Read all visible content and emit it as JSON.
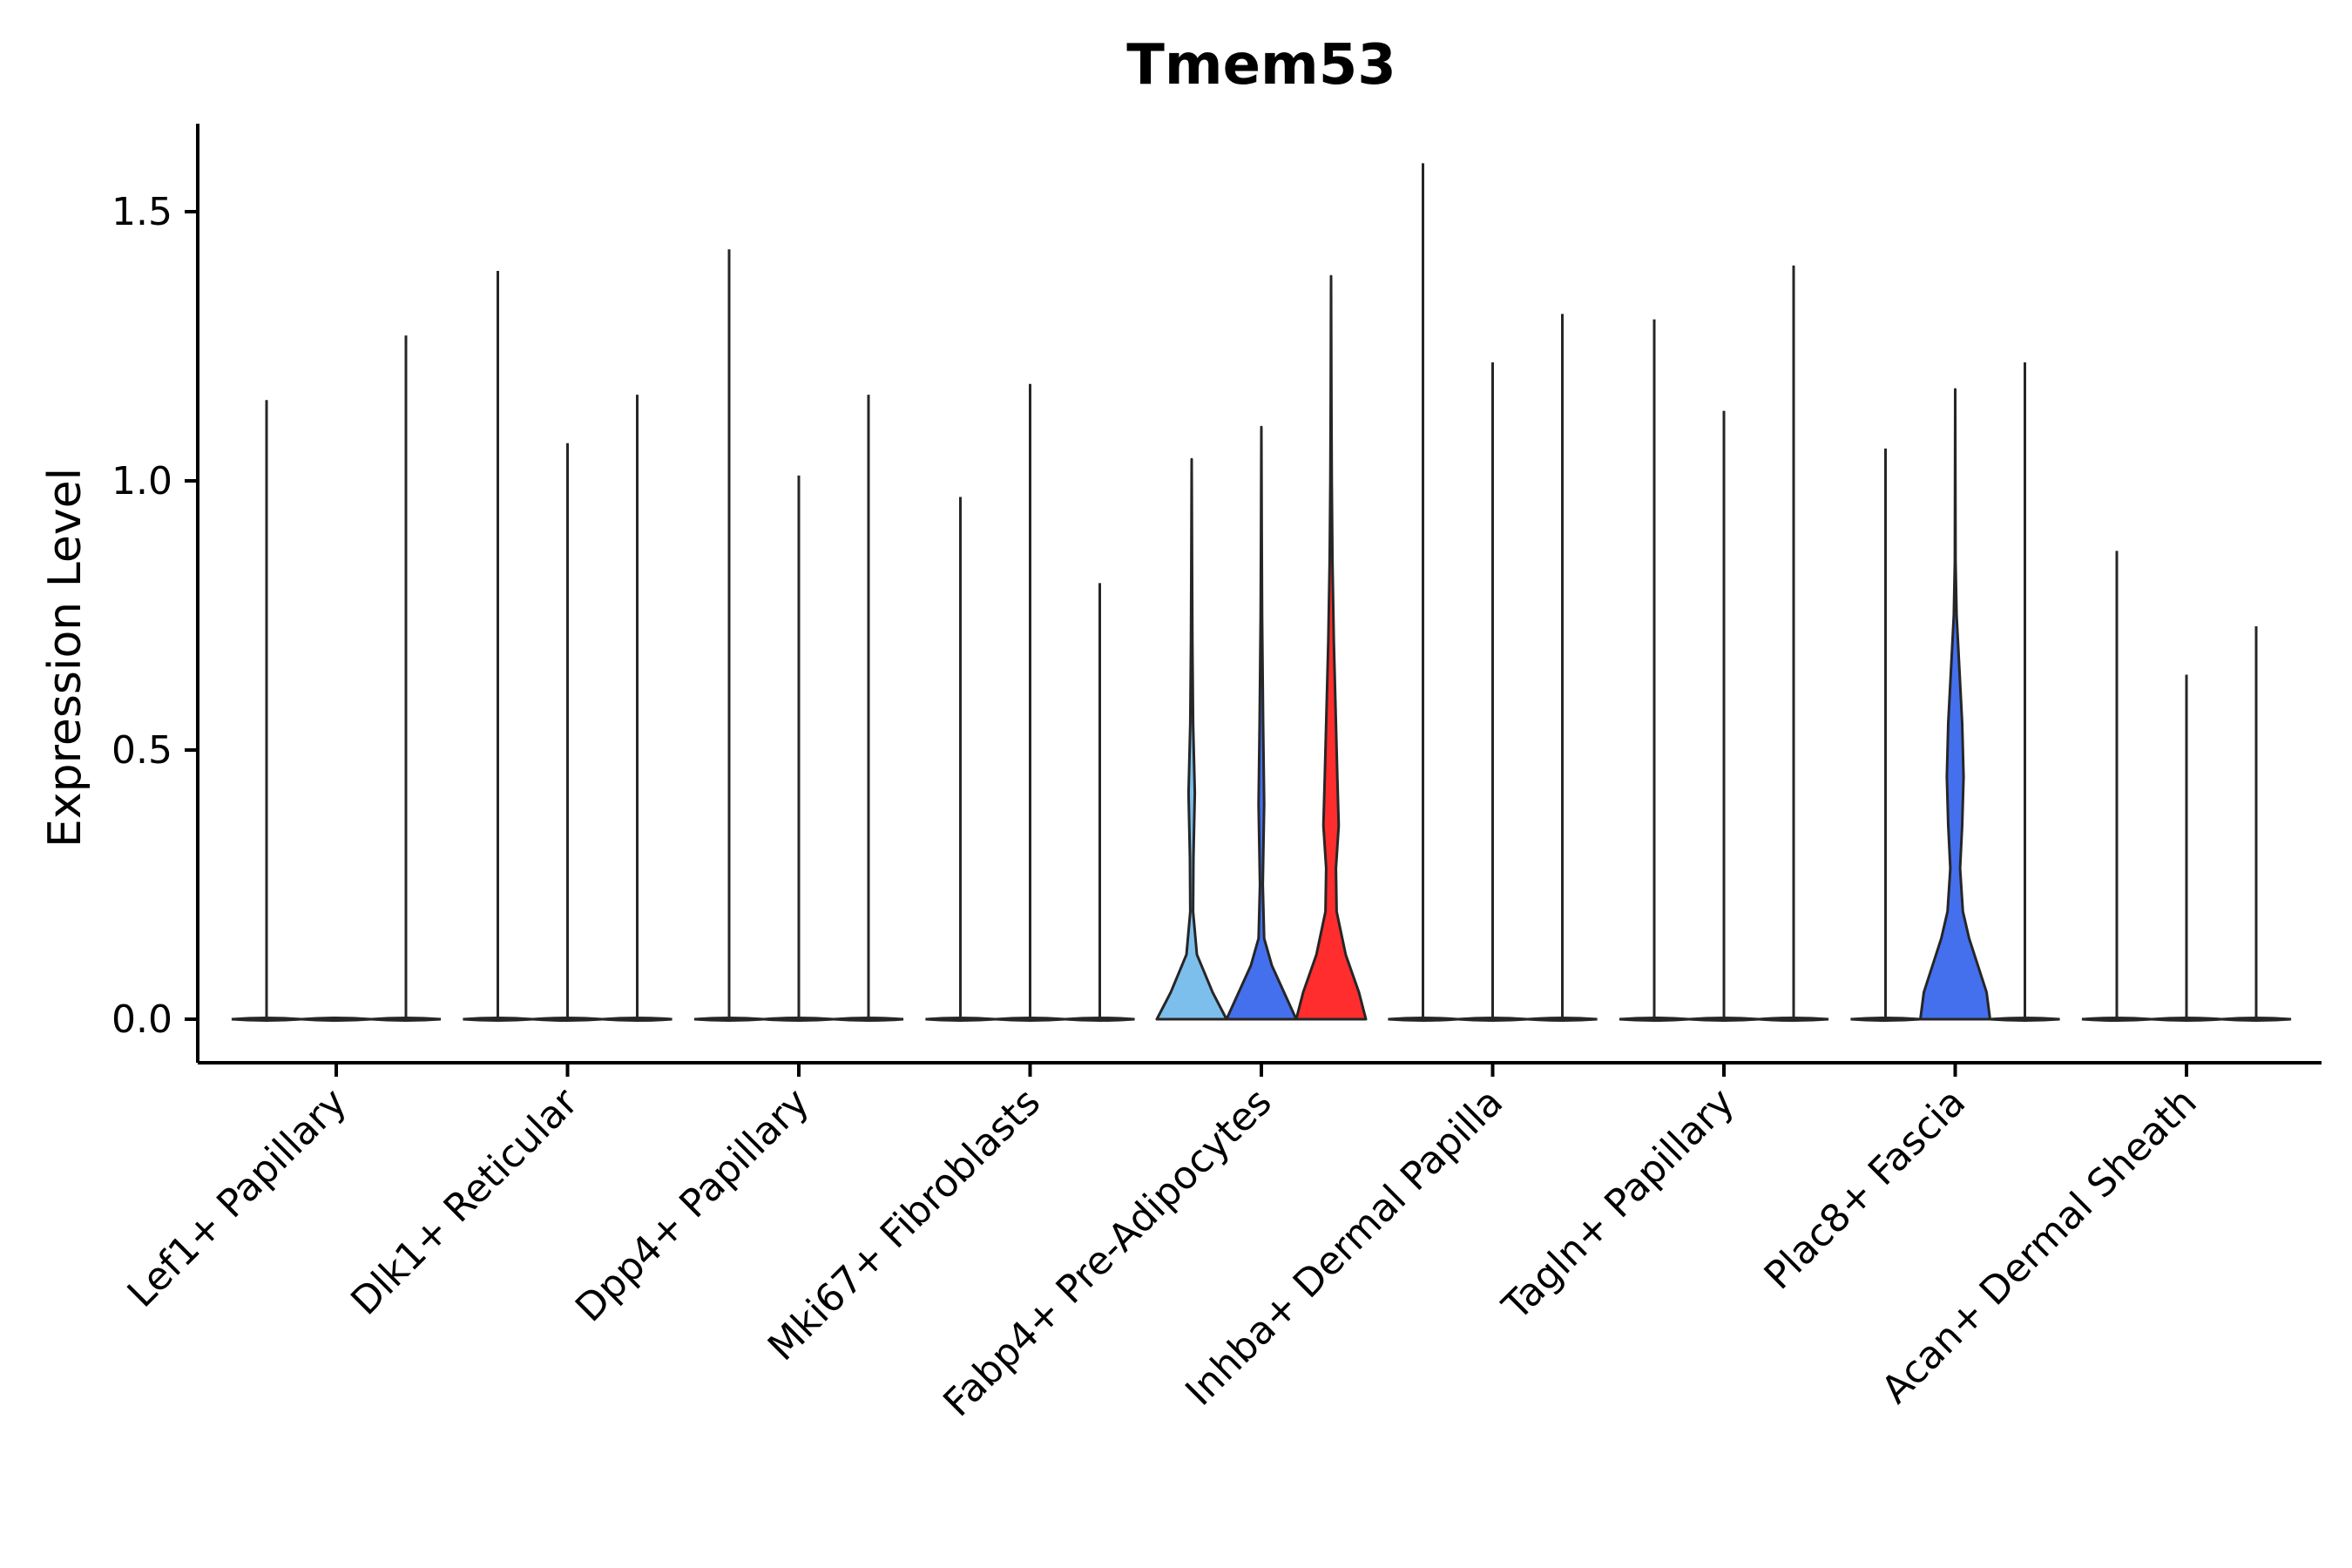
{
  "chart_data": {
    "type": "violin",
    "title": "Tmem53",
    "xlabel": "",
    "ylabel": "Expression Level",
    "ylim": [
      -0.08,
      1.68
    ],
    "yticks": [
      0.0,
      0.5,
      1.0,
      1.5
    ],
    "ytick_labels": [
      "0.0",
      "0.5",
      "1.0",
      "1.5"
    ],
    "grid": false,
    "legend": "none",
    "categories": [
      "Lef1+ Papillary",
      "Dlk1+ Reticular",
      "Dpp4+ Papillary",
      "Mki67+ Fibroblasts",
      "Fabp4+ Pre-Adipocytes",
      "Inhba+ Dermal Papilla",
      "Tagln+ Papillary",
      "Plac8+ Fascia",
      "Acan+ Dermal Sheath"
    ],
    "colors": {
      "light_blue": "#7dbfec",
      "blue": "#4470ee",
      "red": "#ff2d2d",
      "outline": "#262626"
    },
    "groups": [
      {
        "category": "Lef1+ Papillary",
        "violins": [
          {
            "max": 1.15,
            "fill": "none"
          },
          {
            "max": 0.0,
            "fill": "none"
          },
          {
            "max": 1.27,
            "fill": "none"
          }
        ]
      },
      {
        "category": "Dlk1+ Reticular",
        "violins": [
          {
            "max": 1.39,
            "fill": "none"
          },
          {
            "max": 1.07,
            "fill": "none"
          },
          {
            "max": 1.16,
            "fill": "none"
          }
        ]
      },
      {
        "category": "Dpp4+ Papillary",
        "violins": [
          {
            "max": 1.43,
            "fill": "none"
          },
          {
            "max": 1.01,
            "fill": "none"
          },
          {
            "max": 1.16,
            "fill": "none"
          }
        ]
      },
      {
        "category": "Mki67+ Fibroblasts",
        "violins": [
          {
            "max": 0.97,
            "fill": "none"
          },
          {
            "max": 1.18,
            "fill": "none"
          },
          {
            "max": 0.81,
            "fill": "none"
          }
        ]
      },
      {
        "category": "Fabp4+ Pre-Adipocytes",
        "violins": [
          {
            "max": 1.04,
            "fill": "light_blue",
            "density": [
              [
                0.0,
                1.0
              ],
              [
                0.05,
                0.6
              ],
              [
                0.12,
                0.15
              ],
              [
                0.2,
                0.04
              ],
              [
                0.3,
                0.05
              ],
              [
                0.42,
                0.09
              ],
              [
                0.55,
                0.04
              ],
              [
                0.7,
                0.02
              ],
              [
                0.85,
                0.01
              ],
              [
                1.04,
                0.0
              ]
            ]
          },
          {
            "max": 1.1,
            "fill": "blue",
            "density": [
              [
                0.0,
                1.0
              ],
              [
                0.05,
                0.65
              ],
              [
                0.1,
                0.3
              ],
              [
                0.15,
                0.08
              ],
              [
                0.25,
                0.04
              ],
              [
                0.4,
                0.08
              ],
              [
                0.55,
                0.05
              ],
              [
                0.75,
                0.02
              ],
              [
                0.9,
                0.01
              ],
              [
                1.1,
                0.0
              ]
            ]
          },
          {
            "max": 1.38,
            "fill": "red",
            "density": [
              [
                0.0,
                1.0
              ],
              [
                0.05,
                0.8
              ],
              [
                0.12,
                0.42
              ],
              [
                0.2,
                0.16
              ],
              [
                0.28,
                0.14
              ],
              [
                0.36,
                0.22
              ],
              [
                0.45,
                0.18
              ],
              [
                0.55,
                0.14
              ],
              [
                0.7,
                0.08
              ],
              [
                0.85,
                0.04
              ],
              [
                1.0,
                0.02
              ],
              [
                1.15,
                0.01
              ],
              [
                1.38,
                0.0
              ]
            ]
          }
        ]
      },
      {
        "category": "Inhba+ Dermal Papilla",
        "violins": [
          {
            "max": 1.59,
            "fill": "none"
          },
          {
            "max": 1.22,
            "fill": "none"
          },
          {
            "max": 1.31,
            "fill": "none"
          }
        ]
      },
      {
        "category": "Tagln+ Papillary",
        "violins": [
          {
            "max": 1.3,
            "fill": "none"
          },
          {
            "max": 1.13,
            "fill": "none"
          },
          {
            "max": 1.4,
            "fill": "none"
          }
        ]
      },
      {
        "category": "Plac8+ Fascia",
        "violins": [
          {
            "max": 1.06,
            "fill": "none"
          },
          {
            "max": 1.17,
            "fill": "blue",
            "density": [
              [
                0.0,
                1.0
              ],
              [
                0.05,
                0.9
              ],
              [
                0.1,
                0.65
              ],
              [
                0.15,
                0.4
              ],
              [
                0.2,
                0.22
              ],
              [
                0.28,
                0.14
              ],
              [
                0.36,
                0.2
              ],
              [
                0.45,
                0.24
              ],
              [
                0.55,
                0.2
              ],
              [
                0.65,
                0.12
              ],
              [
                0.75,
                0.04
              ],
              [
                0.85,
                0.01
              ],
              [
                1.0,
                0.005
              ],
              [
                1.17,
                0.0
              ]
            ]
          },
          {
            "max": 1.22,
            "fill": "none"
          }
        ]
      },
      {
        "category": "Acan+ Dermal Sheath",
        "violins": [
          {
            "max": 0.87,
            "fill": "none"
          },
          {
            "max": 0.64,
            "fill": "none"
          },
          {
            "max": 0.73,
            "fill": "none"
          }
        ]
      }
    ]
  }
}
